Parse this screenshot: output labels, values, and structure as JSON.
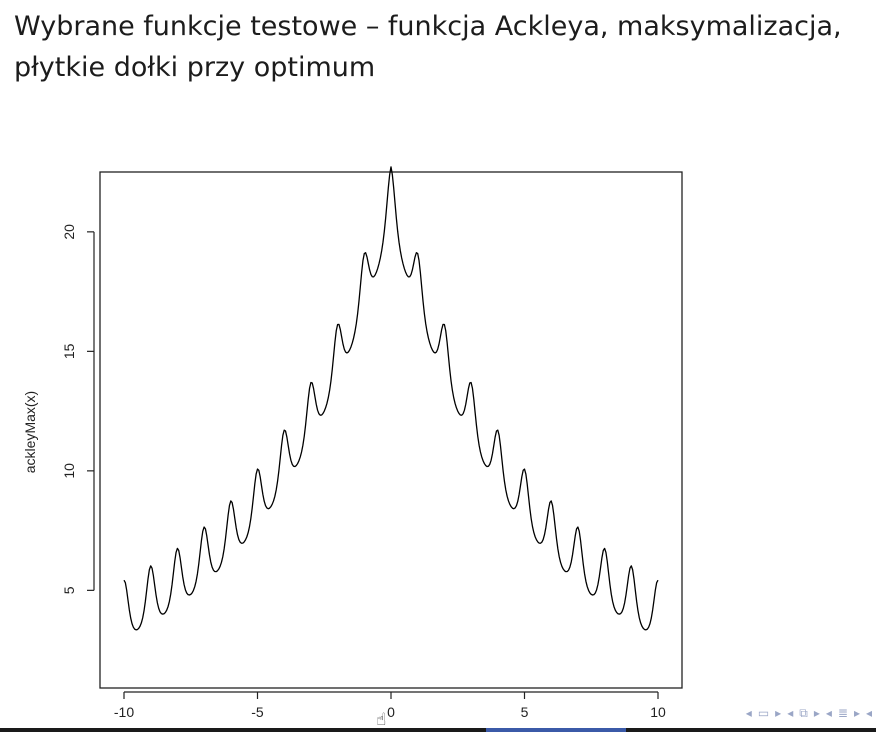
{
  "slide": {
    "title_line1": "Wybrane funkcje testowe – funkcja Ackleya, maksymalizacja,",
    "title_line2": "płytkie dołki przy optimum"
  },
  "navigation": {
    "icons": [
      "frame-prev-icon",
      "frame-next-icon",
      "section-prev-icon",
      "section-next-icon",
      "subsection-icon",
      "more-icon"
    ]
  },
  "chart_data": {
    "type": "line",
    "title": "",
    "xlabel": "",
    "ylabel": "ackleyMax(x)",
    "xlim": [
      -10,
      10
    ],
    "ylim": [
      1.5,
      21.5
    ],
    "x_ticks": [
      -10,
      -5,
      0,
      5,
      10
    ],
    "x_tick_labels": [
      "-10",
      "-5",
      "0",
      "5",
      "10"
    ],
    "y_ticks": [
      5,
      10,
      15,
      20
    ],
    "y_tick_labels": [
      "5",
      "10",
      "15",
      "20"
    ],
    "grid": false,
    "series": [
      {
        "line_color": "#000000",
        "function": "ackleyMax(x) = 20*exp(-0.2*sqrt(x^2)) + exp(cos(2*pi*x))",
        "x_start": -10,
        "x_end": 10,
        "samples": 401
      }
    ]
  }
}
